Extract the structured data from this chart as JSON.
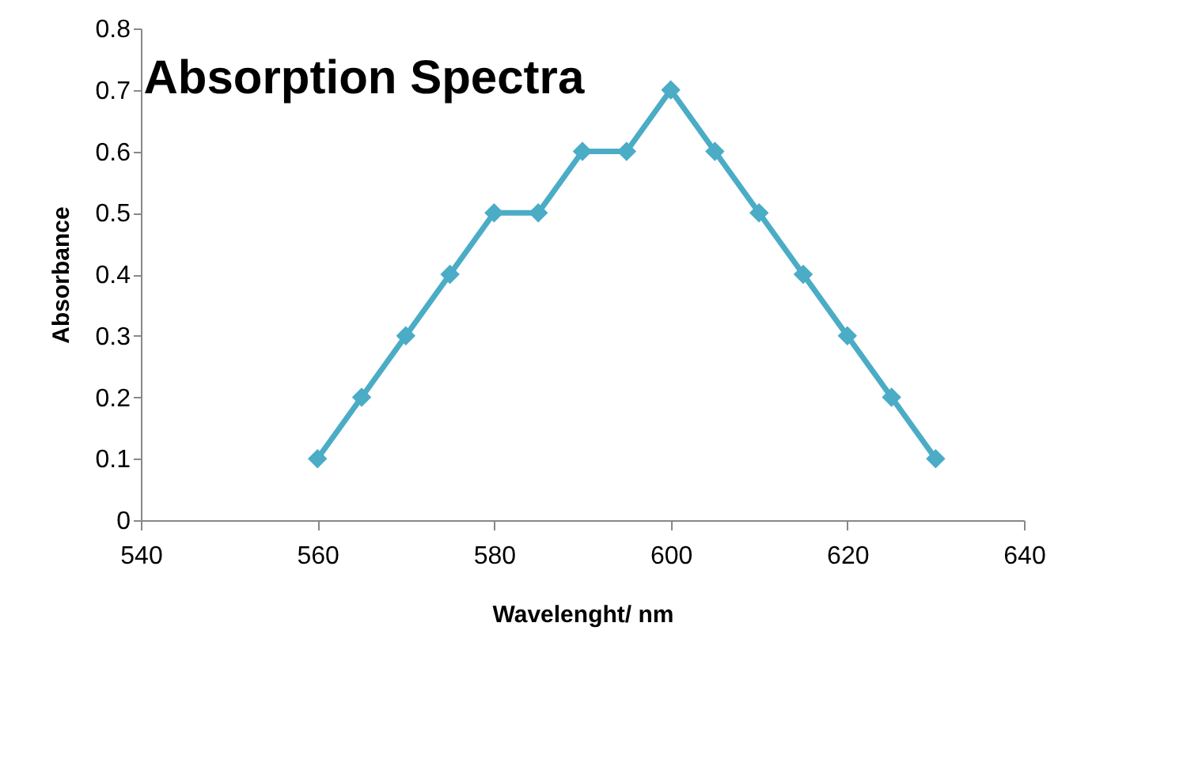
{
  "chart_data": {
    "type": "line",
    "title": "Absorption Spectra",
    "xlabel": "Wavelenght/ nm",
    "ylabel": "Absorbance",
    "x": [
      560,
      565,
      570,
      575,
      580,
      585,
      590,
      595,
      600,
      605,
      610,
      615,
      620,
      625,
      630
    ],
    "series": [
      {
        "color": "#4bacc6",
        "values": [
          0.1,
          0.2,
          0.3,
          0.4,
          0.5,
          0.5,
          0.6,
          0.6,
          0.7,
          0.6,
          0.5,
          0.4,
          0.3,
          0.2,
          0.1
        ]
      }
    ],
    "xlim": [
      540,
      640
    ],
    "xticks": [
      540,
      560,
      580,
      600,
      620,
      640
    ],
    "ylim": [
      0,
      0.8
    ],
    "yticks": [
      0,
      0.1,
      0.2,
      0.3,
      0.4,
      0.5,
      0.6,
      0.7,
      0.8
    ],
    "marker": "diamond",
    "line_style": "solid",
    "grid": false
  }
}
